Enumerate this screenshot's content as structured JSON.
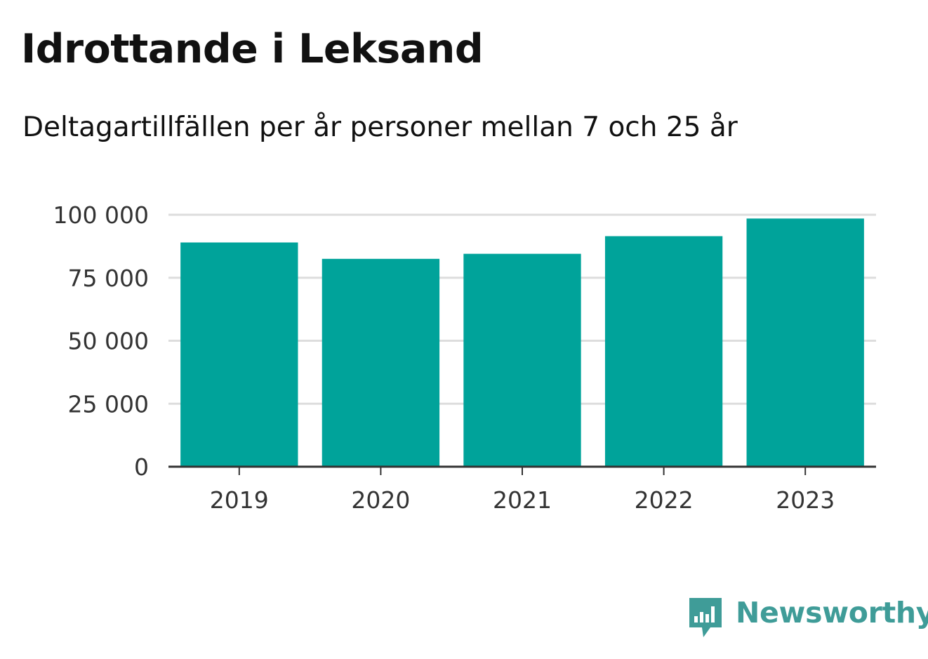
{
  "header": {
    "title": "Idrottande i Leksand",
    "subtitle": "Deltagartillfällen per år personer mellan 7 och 25 år"
  },
  "branding": {
    "name": "Newsworthy",
    "icon": "newsworthy-bar-chart-bubble-icon",
    "color": "#3f9c98"
  },
  "chart_data": {
    "type": "bar",
    "categories": [
      "2019",
      "2020",
      "2021",
      "2022",
      "2023"
    ],
    "values": [
      89000,
      82500,
      84500,
      91500,
      98500
    ],
    "ylim": [
      0,
      100000
    ],
    "yticks": [
      0,
      25000,
      50000,
      75000,
      100000
    ],
    "ytick_labels": [
      "0",
      "25 000",
      "50 000",
      "75 000",
      "100 000"
    ],
    "xlabel": "",
    "ylabel": "",
    "grid": true,
    "legend": "none",
    "colors": {
      "bar": "#00a39a",
      "grid": "#dddddd",
      "axis": "#333333",
      "tick_label": "#333333"
    }
  }
}
